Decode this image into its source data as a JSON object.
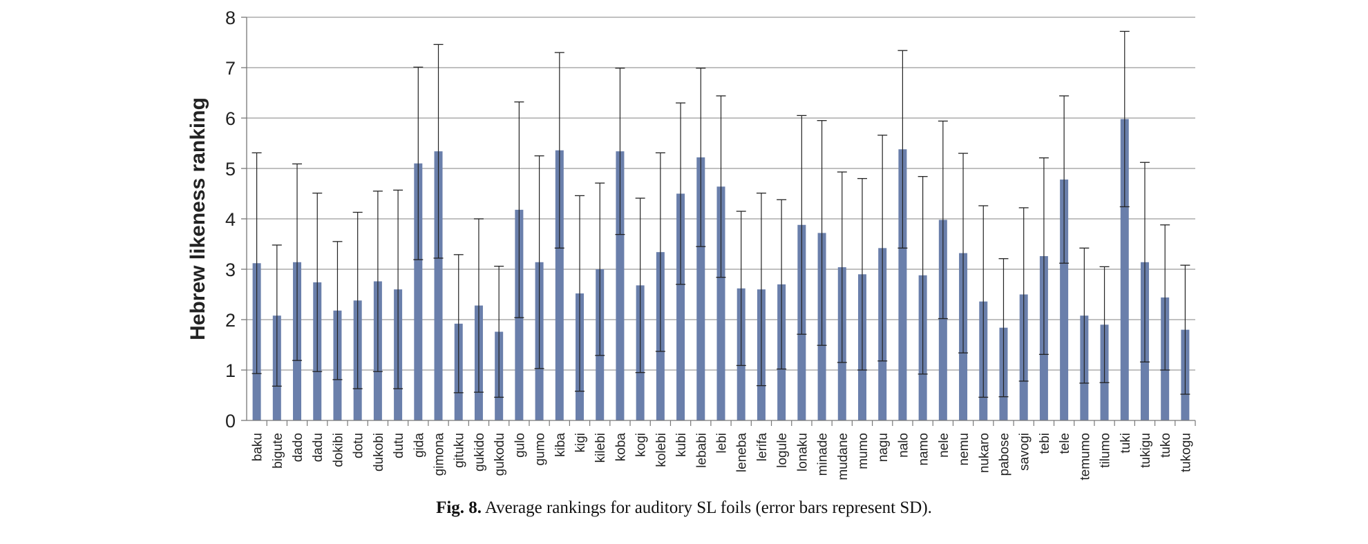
{
  "chart_data": {
    "type": "bar",
    "ylabel": "Hebrew likeness ranking",
    "xlabel": "",
    "ylim": [
      0,
      8
    ],
    "yticks": [
      "0",
      "1",
      "2",
      "3",
      "4",
      "5",
      "6",
      "7",
      "8"
    ],
    "grid": true,
    "bar_color": "#6a7fab",
    "categories": [
      "baku",
      "bigute",
      "dado",
      "dadu",
      "dokibi",
      "dotu",
      "dukobi",
      "dutu",
      "gida",
      "gimona",
      "gituku",
      "gukido",
      "gukodu",
      "gulo",
      "gumo",
      "kiba",
      "kigi",
      "kilebi",
      "koba",
      "kogi",
      "kolebi",
      "kubi",
      "lebabi",
      "lebi",
      "leneba",
      "lerifa",
      "logule",
      "lonaku",
      "minade",
      "mudane",
      "mumo",
      "nagu",
      "nalo",
      "namo",
      "nele",
      "nemu",
      "nukaro",
      "pabose",
      "savogi",
      "tebi",
      "tele",
      "temumo",
      "tilumo",
      "tuki",
      "tukigu",
      "tuko",
      "tukogu"
    ],
    "values": [
      3.12,
      2.08,
      3.14,
      2.74,
      2.18,
      2.38,
      2.76,
      2.6,
      5.1,
      5.34,
      1.92,
      2.28,
      1.76,
      4.18,
      3.14,
      5.36,
      2.52,
      3.0,
      5.34,
      2.68,
      3.34,
      4.5,
      5.22,
      4.64,
      2.62,
      2.6,
      2.7,
      3.88,
      3.72,
      3.04,
      2.9,
      3.42,
      5.38,
      2.88,
      3.98,
      3.32,
      2.36,
      1.84,
      2.5,
      3.26,
      4.78,
      2.08,
      1.9,
      5.98,
      3.14,
      2.44,
      1.8
    ],
    "sd": [
      2.19,
      1.4,
      1.95,
      1.77,
      1.37,
      1.75,
      1.79,
      1.97,
      1.91,
      2.12,
      1.37,
      1.72,
      1.3,
      2.14,
      2.11,
      1.94,
      1.94,
      1.71,
      1.65,
      1.73,
      1.97,
      1.8,
      1.77,
      1.8,
      1.53,
      1.91,
      1.68,
      2.17,
      2.23,
      1.89,
      1.9,
      2.24,
      1.96,
      1.96,
      1.96,
      1.98,
      1.9,
      1.37,
      1.72,
      1.95,
      1.66,
      1.34,
      1.15,
      1.74,
      1.98,
      1.44,
      1.28
    ]
  },
  "caption": {
    "label": "Fig. 8.",
    "text": "Average rankings for auditory SL foils (error bars represent SD)."
  }
}
